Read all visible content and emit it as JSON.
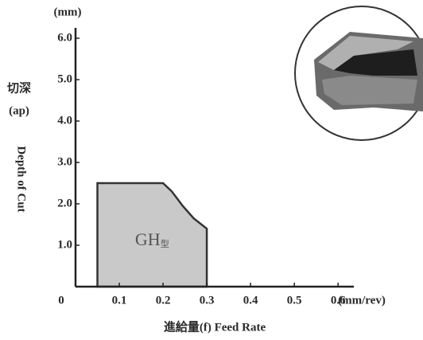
{
  "chart_data": {
    "type": "region",
    "y_unit": "(mm)",
    "y_label_zh": "切深",
    "y_label_symbol": "(ap)",
    "y_label": "Depth of Cut",
    "x_unit": "(mm/rev)",
    "x_label": "進給量(f) Feed Rate",
    "xlim": [
      0,
      0.636
    ],
    "ylim": [
      0,
      6.25
    ],
    "xticks": [
      0,
      0.1,
      0.2,
      0.3,
      0.4,
      0.5,
      0.6
    ],
    "yticks": [
      {
        "value": 1,
        "label": "1.0"
      },
      {
        "value": 2,
        "label": "2.0"
      },
      {
        "value": 3,
        "label": "3.0"
      },
      {
        "value": 4,
        "label": "4.0"
      },
      {
        "value": 5,
        "label": "5.0"
      },
      {
        "value": 6,
        "label": "6.0"
      }
    ],
    "series": [
      {
        "name": "GH",
        "name_sub": "型",
        "color": "#c9c9c9",
        "x": [
          0.05,
          0.05,
          0.2,
          0.22,
          0.245,
          0.27,
          0.3,
          0.3
        ],
        "values": [
          0,
          2.5,
          2.5,
          2.3,
          1.95,
          1.65,
          1.4,
          0
        ]
      }
    ]
  }
}
